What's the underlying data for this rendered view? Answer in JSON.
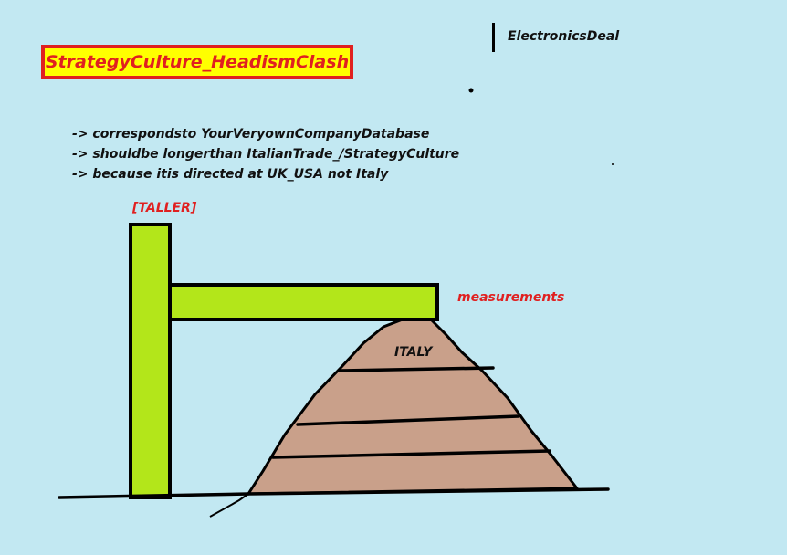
{
  "title": "StrategyCulture_HeadismClash",
  "brand_label": "ElectronicsDeal",
  "notes": [
    "-> correspondsto YourVeryownCompanyDatabase",
    "-> shouldbe longerthan ItalianTrade_/StrategyCulture",
    "-> because itis directed at UK_USA not Italy"
  ],
  "tower_label": "[TALLER]",
  "beam_label": "measurements",
  "mountain_label": "ITALY",
  "colors": {
    "background": "#c2e8f2",
    "title_fill": "#ffff00",
    "title_border": "#e02020",
    "title_text": "#e02020",
    "structure_fill": "#b3e61a",
    "mountain_fill": "#c9a08a",
    "label_red": "#e02020",
    "ink": "#000000"
  }
}
